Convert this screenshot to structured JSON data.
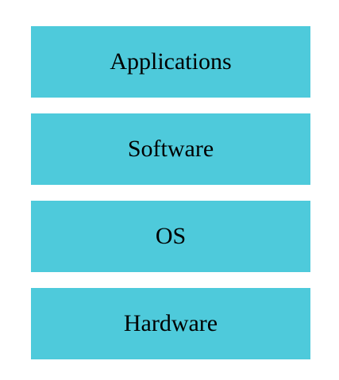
{
  "diagram": {
    "fill_color": "#4ECADB",
    "layers": [
      {
        "label": "Applications"
      },
      {
        "label": "Software"
      },
      {
        "label": "OS"
      },
      {
        "label": "Hardware"
      }
    ]
  }
}
